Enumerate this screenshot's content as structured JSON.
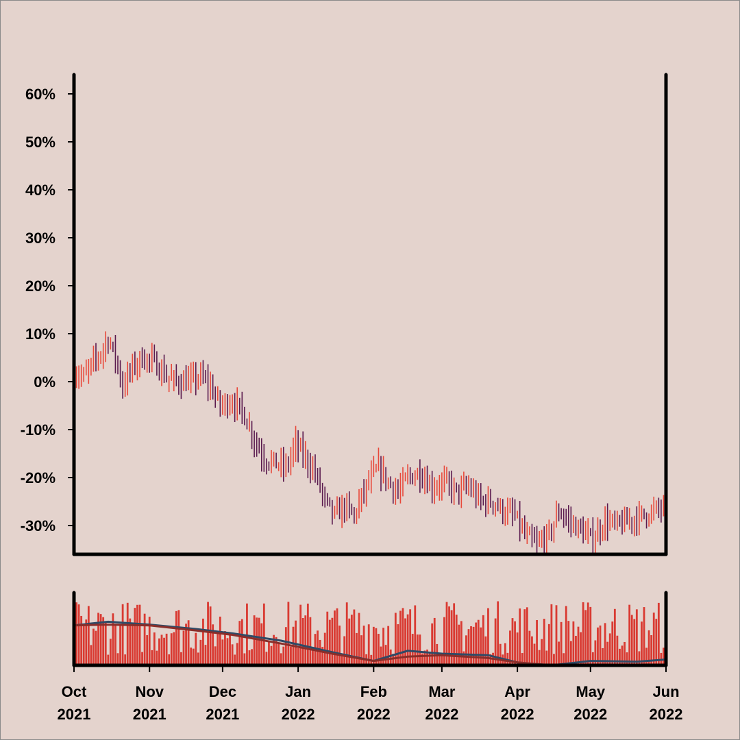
{
  "chart_data": {
    "type": "ohlc",
    "title": "",
    "xlabel": "",
    "ylabel": "",
    "y_unit": "%",
    "ylim": [
      -36,
      64
    ],
    "y_ticks": [
      "60%",
      "50%",
      "40%",
      "30%",
      "20%",
      "10%",
      "0%",
      "-10%",
      "-20%",
      "-30%"
    ],
    "y_tick_values": [
      60,
      50,
      40,
      30,
      20,
      10,
      0,
      -10,
      -20,
      -30
    ],
    "x_range": [
      "2021-10-01",
      "2022-06-01"
    ],
    "x_ticks": [
      {
        "date": "2021-10-01",
        "month": "Oct",
        "year": "2021"
      },
      {
        "date": "2021-11-01",
        "month": "Nov",
        "year": "2021"
      },
      {
        "date": "2021-12-01",
        "month": "Dec",
        "year": "2021"
      },
      {
        "date": "2022-01-01",
        "month": "Jan",
        "year": "2022"
      },
      {
        "date": "2022-02-01",
        "month": "Feb",
        "year": "2022"
      },
      {
        "date": "2022-03-01",
        "month": "Mar",
        "year": "2022"
      },
      {
        "date": "2022-04-01",
        "month": "Apr",
        "year": "2022"
      },
      {
        "date": "2022-05-01",
        "month": "May",
        "year": "2022"
      },
      {
        "date": "2022-06-01",
        "month": "Jun",
        "year": "2022"
      }
    ],
    "close_path": [
      [
        "2021-10-01",
        2
      ],
      [
        "2021-10-05",
        1
      ],
      [
        "2021-10-09",
        4
      ],
      [
        "2021-10-12",
        6
      ],
      [
        "2021-10-15",
        9
      ],
      [
        "2021-10-18",
        5
      ],
      [
        "2021-10-21",
        -1
      ],
      [
        "2021-10-25",
        3
      ],
      [
        "2021-10-29",
        5
      ],
      [
        "2021-11-03",
        4
      ],
      [
        "2021-11-08",
        1
      ],
      [
        "2021-11-12",
        0
      ],
      [
        "2021-11-17",
        0
      ],
      [
        "2021-11-22",
        1
      ],
      [
        "2021-11-26",
        -1
      ],
      [
        "2021-11-30",
        -5
      ],
      [
        "2021-12-05",
        -4
      ],
      [
        "2021-12-10",
        -7
      ],
      [
        "2021-12-14",
        -12
      ],
      [
        "2021-12-18",
        -16
      ],
      [
        "2021-12-23",
        -17
      ],
      [
        "2021-12-27",
        -18
      ],
      [
        "2021-12-31",
        -13
      ],
      [
        "2022-01-04",
        -16
      ],
      [
        "2022-01-08",
        -19
      ],
      [
        "2022-01-12",
        -25
      ],
      [
        "2022-01-16",
        -28
      ],
      [
        "2022-01-20",
        -26
      ],
      [
        "2022-01-24",
        -28
      ],
      [
        "2022-01-27",
        -24
      ],
      [
        "2022-01-31",
        -20
      ],
      [
        "2022-02-03",
        -18
      ],
      [
        "2022-02-07",
        -21
      ],
      [
        "2022-02-11",
        -23
      ],
      [
        "2022-02-15",
        -20
      ],
      [
        "2022-02-20",
        -19
      ],
      [
        "2022-02-25",
        -22
      ],
      [
        "2022-03-02",
        -21
      ],
      [
        "2022-03-07",
        -23
      ],
      [
        "2022-03-12",
        -22
      ],
      [
        "2022-03-17",
        -25
      ],
      [
        "2022-03-22",
        -25
      ],
      [
        "2022-03-26",
        -27
      ],
      [
        "2022-03-31",
        -28
      ],
      [
        "2022-04-04",
        -32
      ],
      [
        "2022-04-09",
        -34
      ],
      [
        "2022-04-14",
        -32
      ],
      [
        "2022-04-18",
        -27
      ],
      [
        "2022-04-22",
        -29
      ],
      [
        "2022-04-27",
        -31
      ],
      [
        "2022-05-02",
        -33
      ],
      [
        "2022-05-07",
        -29
      ],
      [
        "2022-05-12",
        -30
      ],
      [
        "2022-05-17",
        -29
      ],
      [
        "2022-05-22",
        -28
      ],
      [
        "2022-05-27",
        -27
      ],
      [
        "2022-06-01",
        -26
      ]
    ],
    "up_color": "#e8483a",
    "down_color": "#5a1a4e",
    "volume": {
      "bar_color": "#d93a32",
      "lines": [
        {
          "color": "#2e4a66",
          "path": [
            [
              "2021-10-01",
              0.55
            ],
            [
              "2021-10-15",
              0.6
            ],
            [
              "2021-11-01",
              0.56
            ],
            [
              "2021-11-20",
              0.5
            ],
            [
              "2021-12-05",
              0.44
            ],
            [
              "2021-12-25",
              0.34
            ],
            [
              "2022-01-15",
              0.18
            ],
            [
              "2022-02-01",
              0.06
            ],
            [
              "2022-02-15",
              0.2
            ],
            [
              "2022-03-01",
              0.16
            ],
            [
              "2022-03-20",
              0.14
            ],
            [
              "2022-04-01",
              0.04
            ],
            [
              "2022-04-15",
              0.0
            ],
            [
              "2022-05-01",
              0.06
            ],
            [
              "2022-05-20",
              0.05
            ],
            [
              "2022-06-01",
              0.08
            ]
          ]
        },
        {
          "color": "#8a2e2a",
          "path": [
            [
              "2021-10-01",
              0.55
            ],
            [
              "2021-10-15",
              0.56
            ],
            [
              "2021-11-01",
              0.55
            ],
            [
              "2021-11-20",
              0.48
            ],
            [
              "2021-12-05",
              0.42
            ],
            [
              "2021-12-25",
              0.3
            ],
            [
              "2022-01-15",
              0.16
            ],
            [
              "2022-02-01",
              0.06
            ],
            [
              "2022-02-15",
              0.12
            ],
            [
              "2022-03-01",
              0.14
            ],
            [
              "2022-03-20",
              0.1
            ],
            [
              "2022-04-01",
              0.04
            ],
            [
              "2022-04-15",
              0.0
            ],
            [
              "2022-05-01",
              0.0
            ],
            [
              "2022-05-20",
              0.0
            ],
            [
              "2022-06-01",
              0.0
            ]
          ]
        }
      ]
    }
  }
}
